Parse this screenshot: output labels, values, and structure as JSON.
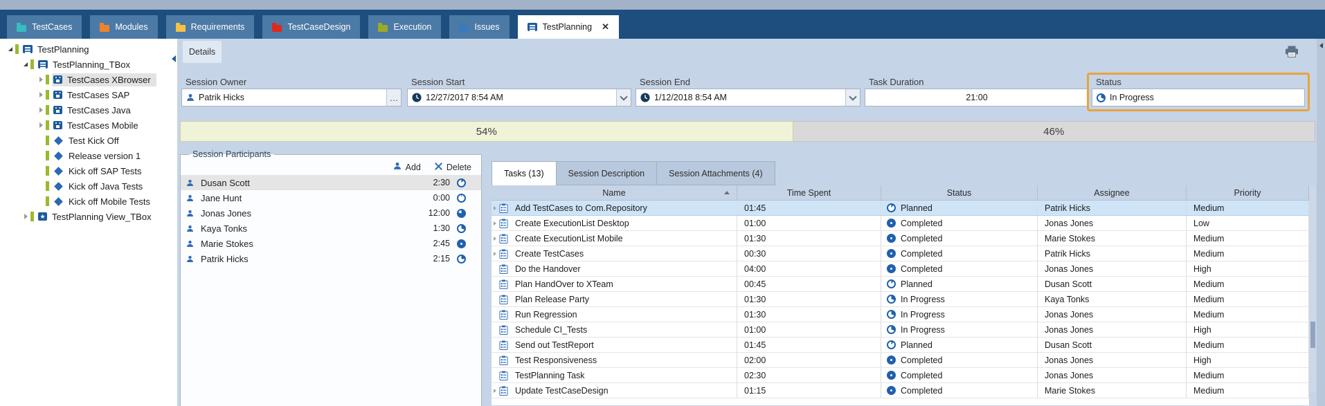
{
  "tabbar": {
    "tabs": [
      {
        "id": "testcases",
        "label": "TestCases",
        "folder_color": "#35bdc0"
      },
      {
        "id": "modules",
        "label": "Modules",
        "folder_color": "#f0822a"
      },
      {
        "id": "requirements",
        "label": "Requirements",
        "folder_color": "#f6c244"
      },
      {
        "id": "testcasedesign",
        "label": "TestCaseDesign",
        "folder_color": "#e0281c"
      },
      {
        "id": "execution",
        "label": "Execution",
        "folder_color": "#9cab24"
      },
      {
        "id": "issues",
        "label": "Issues",
        "folder_color": "#3b79bd"
      },
      {
        "id": "testplanning",
        "label": "TestPlanning",
        "active": true,
        "close": "✕"
      }
    ]
  },
  "tree": {
    "items": [
      {
        "label": "TestPlanning",
        "level": 0,
        "icon": "board",
        "state": "expanded"
      },
      {
        "label": "TestPlanning_TBox",
        "level": 1,
        "icon": "board",
        "state": "expanded"
      },
      {
        "label": "TestCases XBrowser",
        "level": 2,
        "icon": "calendar",
        "state": "collapsed",
        "selected": true
      },
      {
        "label": "TestCases SAP",
        "level": 2,
        "icon": "calendar",
        "state": "collapsed"
      },
      {
        "label": "TestCases Java",
        "level": 2,
        "icon": "calendar",
        "state": "collapsed"
      },
      {
        "label": "TestCases Mobile",
        "level": 2,
        "icon": "calendar",
        "state": "collapsed"
      },
      {
        "label": "Test Kick Off",
        "level": 2,
        "icon": "diamond",
        "state": "leaf"
      },
      {
        "label": "Release version 1",
        "level": 2,
        "icon": "diamond",
        "state": "leaf"
      },
      {
        "label": "Kick off SAP Tests",
        "level": 2,
        "icon": "diamond",
        "state": "leaf"
      },
      {
        "label": "Kick off Java Tests",
        "level": 2,
        "icon": "diamond",
        "state": "leaf"
      },
      {
        "label": "Kick off Mobile Tests",
        "level": 2,
        "icon": "diamond",
        "state": "leaf"
      },
      {
        "label": "TestPlanning View_TBox",
        "level": 1,
        "icon": "star",
        "state": "collapsed"
      }
    ]
  },
  "details": {
    "tab_label": "Details",
    "session_owner": {
      "label": "Session Owner",
      "value": "Patrik Hicks",
      "more_button": "…"
    },
    "session_start": {
      "label": "Session Start",
      "value": "12/27/2017 8:54 AM"
    },
    "session_end": {
      "label": "Session End",
      "value": "1/12/2018 8:54 AM"
    },
    "task_duration": {
      "label": "Task Duration",
      "value": "21:00"
    },
    "status": {
      "label": "Status",
      "value": "In Progress",
      "highlight_color": "#e8a33b"
    }
  },
  "progress": {
    "segments": [
      {
        "label": "54%",
        "width_pct": 54,
        "color": "#eff3d8"
      },
      {
        "label": "46%",
        "width_pct": 46,
        "color": "#d9d9d9"
      }
    ]
  },
  "participants": {
    "title": "Session Participants",
    "add_label": "Add",
    "delete_label": "Delete",
    "rows": [
      {
        "name": "Dusan Scott",
        "time": "2:30",
        "fill": 12,
        "selected": true
      },
      {
        "name": "Jane Hunt",
        "time": "0:00",
        "fill": 3
      },
      {
        "name": "Jonas Jones",
        "time": "12:00",
        "fill": 80
      },
      {
        "name": "Kaya Tonks",
        "time": "1:30",
        "fill": 30
      },
      {
        "name": "Marie Stokes",
        "time": "2:45",
        "fill": 100
      },
      {
        "name": "Patrik Hicks",
        "time": "2:15",
        "fill": 25
      }
    ]
  },
  "tasks": {
    "tabs": [
      {
        "label": "Tasks (13)",
        "active": true
      },
      {
        "label": "Session Description"
      },
      {
        "label": "Session Attachments (4)"
      }
    ],
    "columns": [
      "Name",
      "Time Spent",
      "Status",
      "Assignee",
      "Priority"
    ],
    "sort": {
      "column": "Name",
      "direction": "asc"
    },
    "status_icon_fill": {
      "Planned": 10,
      "In Progress": 30,
      "Completed": 100
    },
    "rows": [
      {
        "expandable": true,
        "name": "Add TestCases to Com.Repository",
        "time_spent": "01:45",
        "status": "Planned",
        "assignee": "Patrik Hicks",
        "priority": "Medium",
        "selected": true
      },
      {
        "expandable": true,
        "name": "Create ExecutionList Desktop",
        "time_spent": "01:00",
        "status": "Completed",
        "assignee": "Jonas Jones",
        "priority": "Low"
      },
      {
        "expandable": true,
        "name": "Create ExecutionList Mobile",
        "time_spent": "01:30",
        "status": "Completed",
        "assignee": "Marie Stokes",
        "priority": "Medium"
      },
      {
        "expandable": true,
        "name": "Create TestCases",
        "time_spent": "00:30",
        "status": "Completed",
        "assignee": "Patrik Hicks",
        "priority": "Medium"
      },
      {
        "expandable": false,
        "name": "Do the Handover",
        "time_spent": "04:00",
        "status": "Completed",
        "assignee": "Jonas Jones",
        "priority": "High"
      },
      {
        "expandable": false,
        "name": "Plan HandOver to XTeam",
        "time_spent": "00:45",
        "status": "Planned",
        "assignee": "Dusan Scott",
        "priority": "Medium"
      },
      {
        "expandable": false,
        "name": "Plan Release Party",
        "time_spent": "01:30",
        "status": "In Progress",
        "assignee": "Kaya Tonks",
        "priority": "Medium"
      },
      {
        "expandable": false,
        "name": "Run Regression",
        "time_spent": "01:30",
        "status": "In Progress",
        "assignee": "Jonas Jones",
        "priority": "Medium"
      },
      {
        "expandable": false,
        "name": "Schedule CI_Tests",
        "time_spent": "01:00",
        "status": "In Progress",
        "assignee": "Jonas Jones",
        "priority": "High"
      },
      {
        "expandable": false,
        "name": "Send out TestReport",
        "time_spent": "01:45",
        "status": "Planned",
        "assignee": "Dusan Scott",
        "priority": "Medium"
      },
      {
        "expandable": false,
        "name": "Test Responsiveness",
        "time_spent": "02:00",
        "status": "Completed",
        "assignee": "Jonas Jones",
        "priority": "High"
      },
      {
        "expandable": false,
        "name": "TestPlanning Task",
        "time_spent": "02:30",
        "status": "Completed",
        "assignee": "Jonas Jones",
        "priority": "Medium"
      },
      {
        "expandable": true,
        "name": "Update TestCaseDesign",
        "time_spent": "01:15",
        "status": "Completed",
        "assignee": "Marie Stokes",
        "priority": "Medium"
      }
    ]
  },
  "colors": {
    "navy": "#1d4e7e",
    "accent_blue": "#1f61ad",
    "selection_blue": "#cfe4f7",
    "highlight_orange": "#e8a33b",
    "progress_done": "#eff3d8",
    "progress_remaining": "#d9d9d9"
  }
}
